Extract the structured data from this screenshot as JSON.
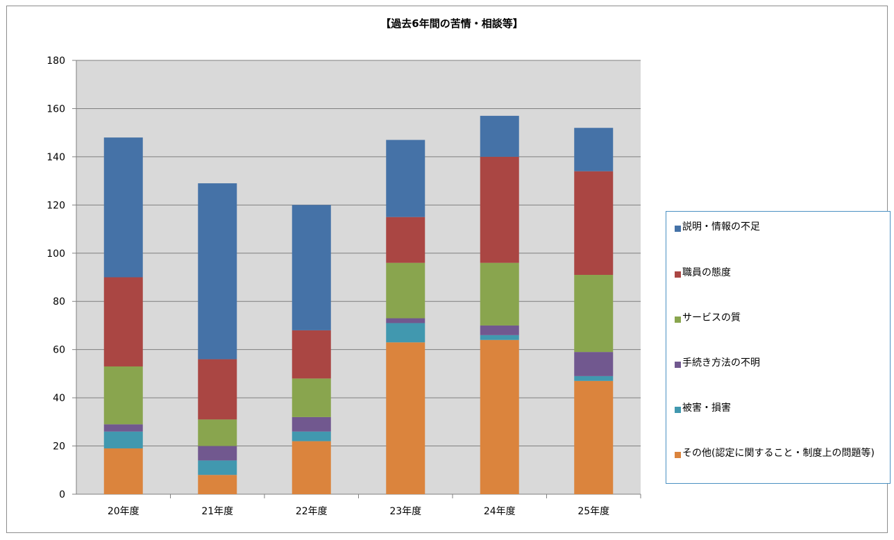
{
  "chart_data": {
    "type": "bar",
    "stacked": true,
    "title": "【過去6年間の苦情・相談等】",
    "xlabel": "",
    "ylabel": "",
    "categories": [
      "20年度",
      "21年度",
      "22年度",
      "23年度",
      "24年度",
      "25年度"
    ],
    "ylim": [
      0,
      180
    ],
    "yticks": [
      0,
      20,
      40,
      60,
      80,
      100,
      120,
      140,
      160,
      180
    ],
    "grid": true,
    "legend_position": "right",
    "series": [
      {
        "name": "その他(認定に関すること・制度上の問題等)",
        "color": "#DB843D",
        "values": [
          19,
          8,
          22,
          63,
          64,
          47
        ]
      },
      {
        "name": "被害・損害",
        "color": "#4198AF",
        "values": [
          7,
          6,
          4,
          8,
          2,
          2
        ]
      },
      {
        "name": "手続き方法の不明",
        "color": "#71588F",
        "values": [
          3,
          6,
          6,
          2,
          4,
          10
        ]
      },
      {
        "name": "サービスの質",
        "color": "#89A54E",
        "values": [
          24,
          11,
          16,
          23,
          26,
          32
        ]
      },
      {
        "name": "職員の態度",
        "color": "#AA4643",
        "values": [
          37,
          25,
          20,
          19,
          44,
          43
        ]
      },
      {
        "name": "説明・情報の不足",
        "color": "#4572A7",
        "values": [
          58,
          73,
          52,
          32,
          17,
          18
        ]
      }
    ],
    "legend_order": [
      "説明・情報の不足",
      "職員の態度",
      "サービスの質",
      "手続き方法の不明",
      "被害・損害",
      "その他(認定に関すること・制度上の問題等)"
    ],
    "plot_background": "#D9D9D9",
    "gridline_color": "#7F7F7F"
  }
}
